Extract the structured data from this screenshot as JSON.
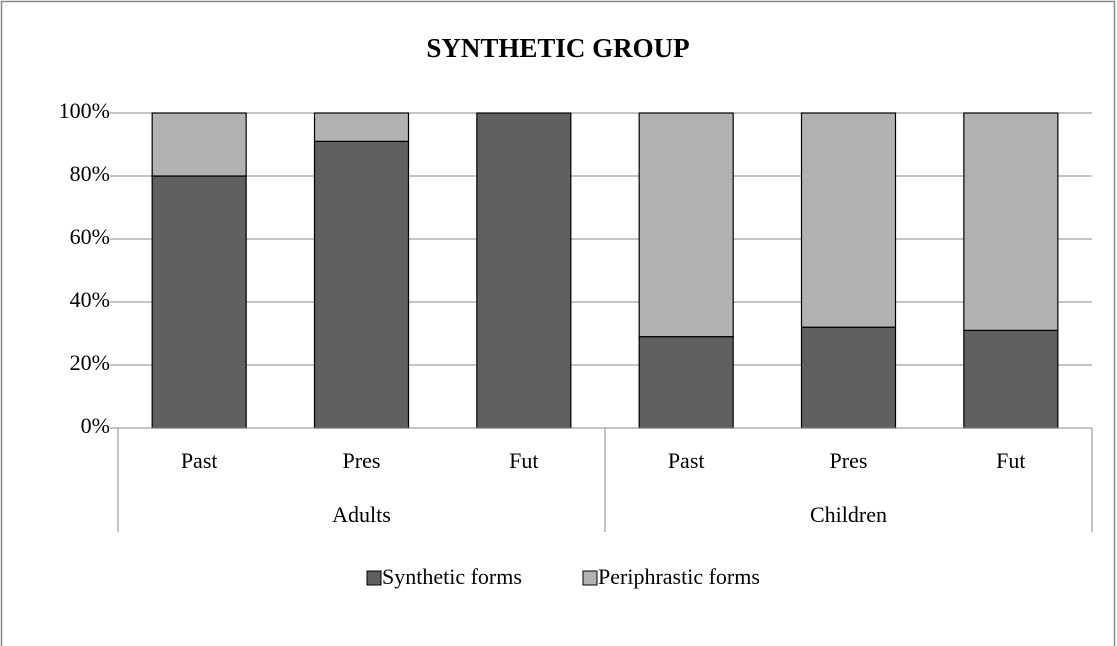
{
  "chart_data": {
    "type": "stacked_bar",
    "title": "SYNTHETIC GROUP",
    "groups": [
      {
        "name": "Adults",
        "categories": [
          "Past",
          "Pres",
          "Fut"
        ]
      },
      {
        "name": "Children",
        "categories": [
          "Past",
          "Pres",
          "Fut"
        ]
      }
    ],
    "series": [
      {
        "name": "Synthetic forms",
        "color": "#606060",
        "values": [
          80,
          91,
          100,
          29,
          32,
          31
        ]
      },
      {
        "name": "Periphrastic forms",
        "color": "#b2b2b2",
        "values": [
          20,
          9,
          0,
          71,
          68,
          69
        ]
      }
    ],
    "ylim": [
      0,
      100
    ],
    "yticks": [
      {
        "value": 0,
        "label": "0%"
      },
      {
        "value": 20,
        "label": "20%"
      },
      {
        "value": 40,
        "label": "40%"
      },
      {
        "value": 60,
        "label": "60%"
      },
      {
        "value": 80,
        "label": "80%"
      },
      {
        "value": 100,
        "label": "100%"
      }
    ],
    "grid": true,
    "legend": "bottom"
  }
}
